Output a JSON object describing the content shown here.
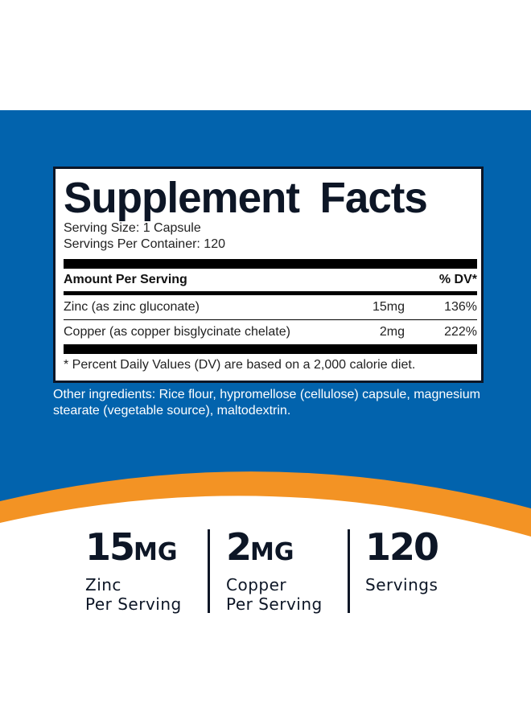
{
  "colors": {
    "blue": "#0263ad",
    "orange": "#f39324",
    "dark": "#0d1626"
  },
  "facts": {
    "title": "Supplement Facts",
    "serving_size": "Serving Size: 1 Capsule",
    "servings_per_container": "Servings Per Container: 120",
    "header": {
      "amount": "Amount Per Serving",
      "dv": "% DV*"
    },
    "rows": [
      {
        "name": "Zinc (as zinc gluconate)",
        "amount": "15mg",
        "dv": "136%"
      },
      {
        "name": "Copper (as copper bisglycinate chelate)",
        "amount": "2mg",
        "dv": "222%"
      }
    ],
    "footnote": "* Percent Daily Values (DV) are based on a 2,000 calorie diet."
  },
  "other_ingredients": "Other ingredients: Rice flour, hypromellose (cellulose) capsule, magnesium stearate (vegetable source), maltodextrin.",
  "stats": [
    {
      "value": "15",
      "unit": "MG",
      "line1": "Zinc",
      "line2": "Per Serving"
    },
    {
      "value": "2",
      "unit": "MG",
      "line1": "Copper",
      "line2": "Per Serving"
    },
    {
      "value": "120",
      "unit": "",
      "line1": "Servings",
      "line2": ""
    }
  ]
}
